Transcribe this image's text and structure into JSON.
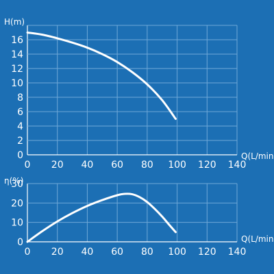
{
  "background_color": "#1c6fb4",
  "chart_data": [
    {
      "type": "line",
      "ylabel": "H(m)",
      "xlabel": "Q(L/min)",
      "xlim": [
        0,
        140
      ],
      "ylim": [
        0,
        18
      ],
      "xticks": [
        0,
        20,
        40,
        60,
        80,
        100,
        120,
        140
      ],
      "yticks": [
        0,
        2,
        4,
        6,
        8,
        10,
        12,
        14,
        16
      ],
      "grid": true,
      "series": [
        {
          "x": [
            0,
            10,
            20,
            30,
            40,
            50,
            60,
            70,
            80,
            90,
            99
          ],
          "y": [
            17.0,
            16.7,
            16.2,
            15.6,
            14.9,
            14.0,
            12.9,
            11.5,
            9.8,
            7.6,
            5.0
          ]
        }
      ]
    },
    {
      "type": "line",
      "ylabel": "η(%)",
      "xlabel": "Q(L/min)",
      "xlim": [
        0,
        140
      ],
      "ylim": [
        0,
        30
      ],
      "xticks": [
        0,
        20,
        40,
        60,
        80,
        100,
        120,
        140
      ],
      "yticks": [
        0,
        10,
        20,
        30
      ],
      "grid": true,
      "series": [
        {
          "x": [
            0,
            10,
            20,
            30,
            40,
            50,
            60,
            65,
            70,
            75,
            80,
            85,
            90,
            95,
            99
          ],
          "y": [
            0,
            5.5,
            10.5,
            14.8,
            18.5,
            21.5,
            24.0,
            24.7,
            24.5,
            23.0,
            20.5,
            17.0,
            13.0,
            8.5,
            5.0
          ]
        }
      ]
    }
  ]
}
